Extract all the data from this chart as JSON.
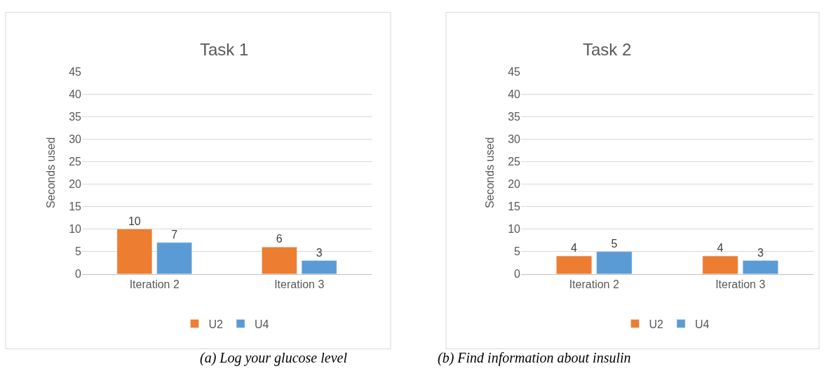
{
  "chart_data": [
    {
      "type": "bar",
      "title": "Task 1",
      "ylabel": "Seconds used",
      "categories": [
        "Iteration 2",
        "Iteration 3"
      ],
      "series": [
        {
          "name": "U2",
          "color": "#ed7d31",
          "values": [
            10,
            6
          ]
        },
        {
          "name": "U4",
          "color": "#5b9bd5",
          "values": [
            7,
            3
          ]
        }
      ],
      "ylim": [
        0,
        45
      ],
      "yticks": [
        0,
        5,
        10,
        15,
        20,
        25,
        30,
        35,
        40,
        45
      ],
      "grid": "y",
      "legend": "bottom",
      "data_labels": true,
      "annotations": [
        "(a) Log your glucose level"
      ]
    },
    {
      "type": "bar",
      "title": "Task 2",
      "ylabel": "Seconds used",
      "categories": [
        "Iteration 2",
        "Iteration 3"
      ],
      "series": [
        {
          "name": "U2",
          "color": "#ed7d31",
          "values": [
            4,
            4
          ]
        },
        {
          "name": "U4",
          "color": "#5b9bd5",
          "values": [
            5,
            3
          ]
        }
      ],
      "ylim": [
        0,
        45
      ],
      "yticks": [
        0,
        5,
        10,
        15,
        20,
        25,
        30,
        35,
        40,
        45
      ],
      "grid": "y",
      "legend": "bottom",
      "data_labels": true,
      "annotations": [
        "(b) Find information about insulin"
      ]
    }
  ]
}
